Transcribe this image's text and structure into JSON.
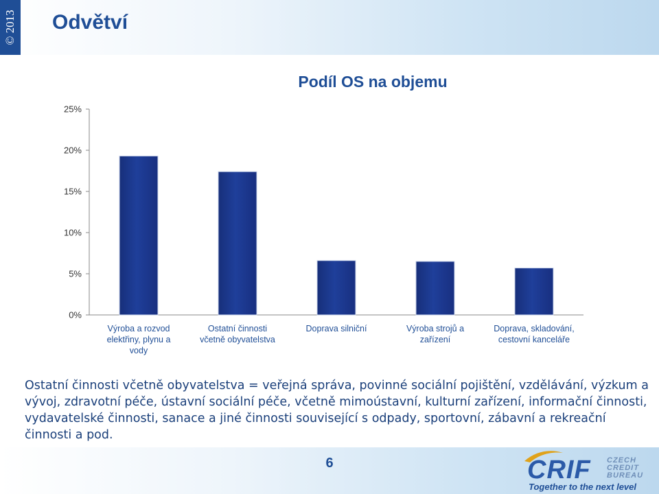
{
  "header": {
    "copyright": "© 2013",
    "title": "Odvětví"
  },
  "chart_data": {
    "type": "bar",
    "title": "Podíl OS na objemu",
    "categories": [
      [
        "Výroba a rozvod",
        "elektřiny, plynu a",
        "vody"
      ],
      [
        "Ostatní činnosti",
        "včetně obyvatelstva"
      ],
      [
        "Doprava silniční"
      ],
      [
        "Výroba strojů a",
        "zařízení"
      ],
      [
        "Doprava, skladování,",
        "cestovní kanceláře"
      ]
    ],
    "values": [
      19.3,
      17.4,
      6.6,
      6.5,
      5.7
    ],
    "ylim": [
      0,
      25
    ],
    "yticks": [
      0,
      5,
      10,
      15,
      20,
      25
    ],
    "ytick_labels": [
      "0%",
      "5%",
      "10%",
      "15%",
      "20%",
      "25%"
    ],
    "grid": false,
    "bar_color": "#1f3f9a"
  },
  "description": "Ostatní činnosti včetně obyvatelstva = veřejná správa, povinné sociální pojištění, vzdělávání, výzkum a vývoj, zdravotní péče, ústavní sociální péče, včetně mimoústavní, kulturní zařízení, informační činnosti, vydavatelské činnosti, sanace a jiné činnosti související s odpady, sportovní, zábavní a rekreační činnosti a pod.",
  "footer": {
    "page_number": "6",
    "logo_text": "CRIF",
    "logo_sub": [
      "CZECH",
      "CREDIT",
      "BUREAU"
    ],
    "tagline": "Together to the next level"
  }
}
